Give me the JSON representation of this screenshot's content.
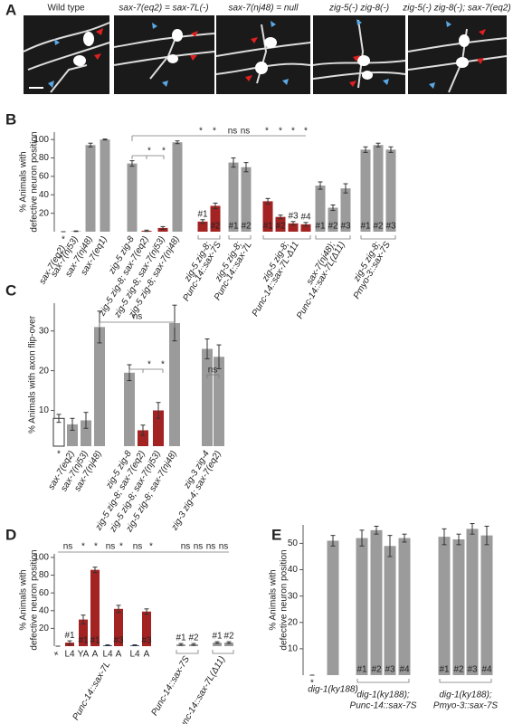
{
  "panel_a": {
    "label": "A",
    "images": [
      "Wild type",
      "sax-7(eq2) = sax-7L(-)",
      "sax-7(nj48)  = null",
      "zig-5(-) zig-8(-)",
      "zig-5(-) zig-8(-); sax-7(eq2)"
    ]
  },
  "chart_data": [
    {
      "type": "bar",
      "panel_label": "B",
      "ylabel": [
        "% Animals with",
        "defective neuron position"
      ],
      "ylim": [
        0,
        108
      ],
      "yticks": [
        20,
        40,
        60,
        80,
        100
      ],
      "groups": [
        {
          "label": [
            "sax-7(eq2)"
          ],
          "marker": "*",
          "values": [
            0
          ],
          "errors": [
            0
          ],
          "color": "#9b9b9b"
        },
        {
          "label": [
            "sax-7(nj53)"
          ],
          "values": [
            0.5
          ],
          "errors": [
            0.3
          ],
          "color": "#9b9b9b"
        },
        {
          "label": [
            "sax-7(nj48)"
          ],
          "values": [
            94
          ],
          "errors": [
            2
          ],
          "color": "#9b9b9b"
        },
        {
          "label": [
            "sax-7(eq1)"
          ],
          "values": [
            100
          ],
          "errors": [
            0.5
          ],
          "color": "#9b9b9b"
        },
        {
          "label": [
            "zig-5 zig-8"
          ],
          "values": [
            74
          ],
          "errors": [
            3
          ],
          "color": "#9b9b9b"
        },
        {
          "label": [
            "zig-5 zig-8; sax-7(eq2)"
          ],
          "label_color": "#8b1a1a",
          "values": [
            1
          ],
          "errors": [
            0.7
          ],
          "color": "#a32222"
        },
        {
          "label": [
            "zig-5 zig-8; sax-7(nj53)"
          ],
          "label_color": "#8b1a1a",
          "values": [
            4
          ],
          "errors": [
            1.5
          ],
          "color": "#a32222"
        },
        {
          "label": [
            "zig-5 zig-8; sax-7(nj48)"
          ],
          "values": [
            97
          ],
          "errors": [
            1.5
          ],
          "color": "#9b9b9b"
        },
        {
          "label": [
            "zig-5 zig-8;",
            "Punc-14::sax-7S"
          ],
          "label_color": "#8b1a1a",
          "values": [
            11,
            28
          ],
          "errors": [
            2,
            3
          ],
          "color": "#a32222",
          "bar_labels": [
            "#1",
            "#2"
          ]
        },
        {
          "label": [
            "zig-5 zig-8;",
            "Punc-14::sax-7L"
          ],
          "values": [
            75,
            70
          ],
          "errors": [
            5,
            5
          ],
          "color": "#9b9b9b",
          "bar_labels": [
            "#1",
            "#2"
          ]
        },
        {
          "label": [
            "zig-5 zig-8;",
            "Punc-14::sax-7L-Δ11"
          ],
          "label_color": "#8b1a1a",
          "values": [
            33,
            16,
            9,
            8
          ],
          "errors": [
            3,
            2,
            2,
            2
          ],
          "color": "#a32222",
          "bar_labels": [
            "#1",
            "#2",
            "#3",
            "#4"
          ]
        },
        {
          "label": [
            "sax-7(nj48);",
            "Punc-14::sax-7L(Δ11)"
          ],
          "values": [
            50,
            26,
            47
          ],
          "errors": [
            4,
            3,
            5
          ],
          "color": "#9b9b9b",
          "bar_labels": [
            "#1",
            "#2",
            "#3"
          ]
        },
        {
          "label": [
            "zig-5 zig-8;",
            "Pmyo-3::sax-7S"
          ],
          "values": [
            89,
            94,
            89
          ],
          "errors": [
            3,
            2,
            3
          ],
          "color": "#9b9b9b",
          "bar_labels": [
            "#1",
            "#2",
            "#3"
          ]
        }
      ],
      "significance": [
        {
          "label": "*"
        },
        {
          "label": "*"
        },
        {
          "label": "*"
        },
        {
          "label": "*"
        },
        {
          "label": "ns"
        },
        {
          "label": "ns"
        },
        {
          "label": "*"
        },
        {
          "label": "*"
        },
        {
          "label": "*"
        },
        {
          "label": "*"
        }
      ]
    },
    {
      "type": "bar",
      "panel_label": "C",
      "ylabel": [
        "% Animals with axon flip-over"
      ],
      "ylim": [
        1,
        37
      ],
      "yticks": [
        10,
        20,
        30
      ],
      "groups": [
        {
          "label": null,
          "marker": "*",
          "values": [
            8
          ],
          "errors": [
            1
          ],
          "color": "#ffffff"
        },
        {
          "label": [
            "sax-7(eq2)"
          ],
          "values": [
            6.5
          ],
          "errors": [
            1.5
          ],
          "color": "#9b9b9b"
        },
        {
          "label": [
            "sax-7(nj53)"
          ],
          "values": [
            7.5
          ],
          "errors": [
            2
          ],
          "color": "#9b9b9b"
        },
        {
          "label": [
            "sax-7(nj48)"
          ],
          "values": [
            31
          ],
          "errors": [
            4
          ],
          "color": "#9b9b9b"
        },
        {
          "label": [
            "zig-5 zig-8"
          ],
          "values": [
            19.5
          ],
          "errors": [
            2
          ],
          "color": "#9b9b9b"
        },
        {
          "label": [
            "zig-5 zig-8; sax-7(eq2)"
          ],
          "values": [
            5
          ],
          "errors": [
            1.3
          ],
          "color": "#a32222"
        },
        {
          "label": [
            "zig-5 zig-8; sax-7(nj53)"
          ],
          "values": [
            10
          ],
          "errors": [
            2
          ],
          "color": "#a32222"
        },
        {
          "label": [
            "zig-5 zig-8; sax-7(nj48)"
          ],
          "values": [
            32
          ],
          "errors": [
            4.5
          ],
          "color": "#9b9b9b"
        },
        {
          "label": [
            "zig-3 zig-4"
          ],
          "values": [
            25.5
          ],
          "errors": [
            2.5
          ],
          "color": "#9b9b9b"
        },
        {
          "label": [
            "zig-3 zig-4; sax-7(eq2)"
          ],
          "values": [
            23.5
          ],
          "errors": [
            3
          ],
          "color": "#9b9b9b"
        }
      ],
      "significance": [
        {
          "label": "ns"
        },
        {
          "label": "*"
        },
        {
          "label": "*"
        },
        {
          "label": "ns"
        }
      ]
    },
    {
      "type": "bar",
      "panel_label": "D",
      "ylabel": [
        "% Animals with",
        "defective neuron position"
      ],
      "ylim": [
        0,
        104
      ],
      "yticks": [
        20,
        40,
        60,
        80,
        100
      ],
      "groups": [
        {
          "label": [
            "+"
          ],
          "values": [
            0
          ],
          "errors": [
            0
          ],
          "color": "#9b9b9b"
        },
        {
          "label": [
            "Punc-14::sax-7L"
          ],
          "label_color": "#8b1a1a",
          "values": [
            4,
            30,
            86,
            1,
            42,
            1,
            39
          ],
          "errors": [
            2,
            5,
            3,
            0.5,
            4,
            0.5,
            3
          ],
          "colors": [
            "#a32222",
            "#a32222",
            "#a32222",
            "#3b5b9b",
            "#a32222",
            "#3b5b9b",
            "#a32222"
          ],
          "bar_labels": [
            "#1",
            "#1",
            "#1",
            null,
            "#3",
            null,
            "#3"
          ],
          "stages": [
            "L4",
            "YA",
            "A",
            "L4",
            "A",
            "L4",
            "A"
          ]
        },
        {
          "label": [
            "Punc-14::sax-7S"
          ],
          "values": [
            2,
            2
          ],
          "errors": [
            1,
            1
          ],
          "color": "#9b9b9b",
          "bar_labels": [
            "#1",
            "#2"
          ]
        },
        {
          "label": [
            "Punc-14::sax-7L(Δ11)"
          ],
          "values": [
            4,
            4
          ],
          "errors": [
            1,
            1
          ],
          "color": "#9b9b9b",
          "bar_labels": [
            "#1",
            "#2"
          ]
        }
      ],
      "significance": [
        {
          "label": "ns"
        },
        {
          "label": "*"
        },
        {
          "label": "*"
        },
        {
          "label": "ns"
        },
        {
          "label": "*"
        },
        {
          "label": "ns"
        },
        {
          "label": "*"
        },
        {
          "label": "ns"
        },
        {
          "label": "ns"
        },
        {
          "label": "ns"
        },
        {
          "label": "ns"
        }
      ]
    },
    {
      "type": "bar",
      "panel_label": "E",
      "ylabel": [
        "% Animals with",
        "defective neuron position"
      ],
      "ylim": [
        0,
        57
      ],
      "yticks": [
        10,
        20,
        30,
        40,
        50
      ],
      "groups": [
        {
          "label": null,
          "marker": "*",
          "values": [
            0
          ],
          "errors": [
            0
          ],
          "color": "#9b9b9b"
        },
        {
          "label": [
            "dig-1(ky188)"
          ],
          "values": [
            51
          ],
          "errors": [
            2
          ],
          "color": "#9b9b9b"
        },
        {
          "label": [
            "dig-1(ky188);",
            "Punc-14::sax-7S"
          ],
          "values": [
            52,
            55,
            49,
            52
          ],
          "errors": [
            3,
            1.5,
            4,
            1.5
          ],
          "color": "#9b9b9b",
          "bar_labels": [
            "#1",
            "#2",
            "#3",
            "#4"
          ]
        },
        {
          "label": [
            "dig-1(ky188);",
            "Pmyo-3::sax-7S"
          ],
          "values": [
            52.5,
            51.5,
            55.5,
            53
          ],
          "errors": [
            3,
            2,
            2,
            3.5
          ],
          "color": "#9b9b9b",
          "bar_labels": [
            "#1",
            "#2",
            "#3",
            "#4"
          ]
        }
      ]
    }
  ]
}
